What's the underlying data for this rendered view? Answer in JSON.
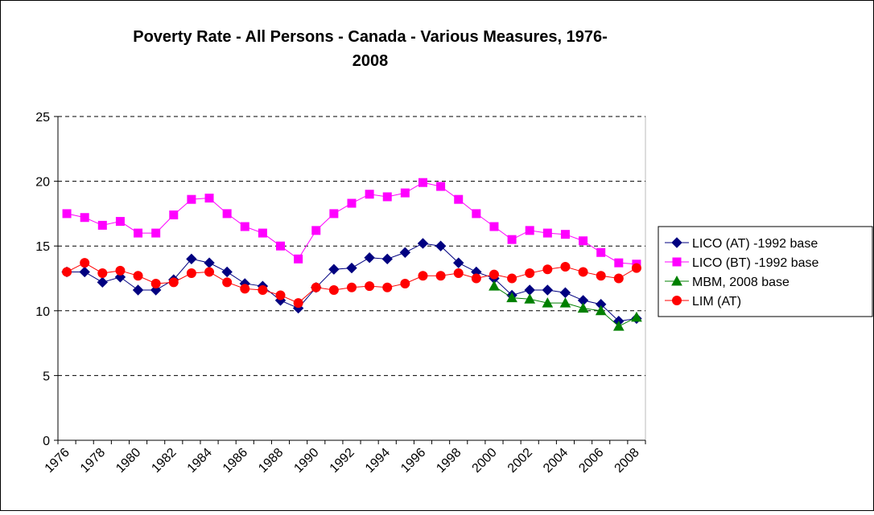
{
  "chart_data": {
    "type": "line",
    "title": [
      "Poverty Rate - All Persons - Canada - Various Measures, 1976-",
      "2008"
    ],
    "categories": [
      "1976",
      null,
      "1978",
      null,
      "1980",
      null,
      "1982",
      null,
      "1984",
      null,
      "1986",
      null,
      "1988",
      null,
      "1990",
      null,
      "1992",
      null,
      "1994",
      null,
      "1996",
      null,
      "1998",
      null,
      "2000",
      null,
      "2002",
      null,
      "2004",
      null,
      "2006",
      null,
      "2008"
    ],
    "ylim": [
      0,
      25
    ],
    "yticks": [
      0,
      5,
      10,
      15,
      20,
      25
    ],
    "grid": true,
    "legend": "right",
    "series": [
      {
        "name": "LICO (AT) -1992 base",
        "color": "#000080",
        "marker": "diamond",
        "values": [
          13.0,
          13.0,
          12.2,
          12.6,
          11.6,
          11.6,
          12.4,
          14.0,
          13.7,
          13.0,
          12.1,
          11.9,
          10.8,
          10.2,
          11.8,
          13.2,
          13.3,
          14.1,
          14.0,
          14.5,
          15.2,
          15.0,
          13.7,
          13.0,
          12.5,
          11.2,
          11.6,
          11.6,
          11.4,
          10.8,
          10.5,
          9.2,
          9.4
        ]
      },
      {
        "name": "LICO (BT) -1992 base",
        "color": "#ff00ff",
        "marker": "square",
        "values": [
          17.5,
          17.2,
          16.6,
          16.9,
          16.0,
          16.0,
          17.4,
          18.6,
          18.7,
          17.5,
          16.5,
          16.0,
          15.0,
          14.0,
          16.2,
          17.5,
          18.3,
          19.0,
          18.8,
          19.1,
          19.9,
          19.6,
          18.6,
          17.5,
          16.5,
          15.5,
          16.2,
          16.0,
          15.9,
          15.4,
          14.5,
          13.7,
          13.6
        ]
      },
      {
        "name": "MBM, 2008 base",
        "color": "#008000",
        "marker": "triangle",
        "values": [
          null,
          null,
          null,
          null,
          null,
          null,
          null,
          null,
          null,
          null,
          null,
          null,
          null,
          null,
          null,
          null,
          null,
          null,
          null,
          null,
          null,
          null,
          null,
          null,
          11.9,
          11.0,
          10.9,
          10.6,
          10.6,
          10.2,
          10.0,
          8.8,
          9.5
        ]
      },
      {
        "name": "LIM (AT)",
        "color": "#ff0000",
        "marker": "circle",
        "values": [
          13.0,
          13.7,
          12.9,
          13.1,
          12.7,
          12.1,
          12.2,
          12.9,
          13.0,
          12.2,
          11.7,
          11.6,
          11.2,
          10.6,
          11.8,
          11.6,
          11.8,
          11.9,
          11.8,
          12.1,
          12.7,
          12.7,
          12.9,
          12.5,
          12.8,
          12.5,
          12.9,
          13.2,
          13.4,
          13.0,
          12.7,
          12.5,
          13.3
        ]
      }
    ]
  }
}
